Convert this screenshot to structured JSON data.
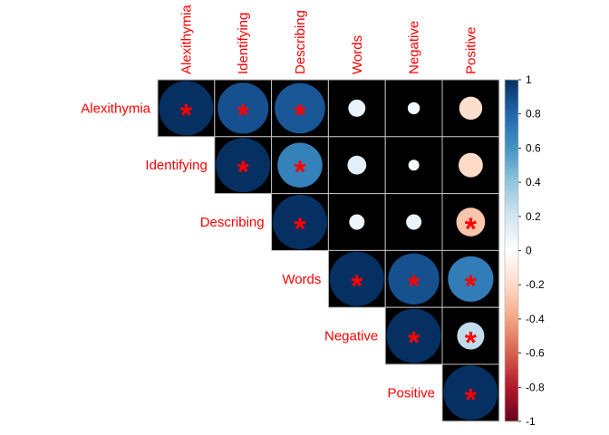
{
  "chart_data": {
    "type": "heatmap",
    "subtype": "correlation-matrix-upper-circles",
    "variables": [
      "Alexithymia",
      "Identifying",
      "Describing",
      "Words",
      "Negative",
      "Positive"
    ],
    "matrix": [
      [
        1.0,
        0.88,
        0.86,
        0.1,
        0.05,
        -0.18
      ],
      [
        null,
        1.0,
        0.68,
        0.12,
        0.04,
        -0.2
      ],
      [
        null,
        null,
        1.0,
        0.08,
        0.08,
        -0.28
      ],
      [
        null,
        null,
        null,
        1.0,
        0.88,
        0.7
      ],
      [
        null,
        null,
        null,
        null,
        1.0,
        0.25
      ],
      [
        null,
        null,
        null,
        null,
        null,
        1.0
      ]
    ],
    "significant": [
      [
        true,
        true,
        true,
        false,
        false,
        false
      ],
      [
        null,
        true,
        true,
        false,
        false,
        false
      ],
      [
        null,
        null,
        true,
        false,
        false,
        true
      ],
      [
        null,
        null,
        null,
        true,
        true,
        true
      ],
      [
        null,
        null,
        null,
        null,
        true,
        true
      ],
      [
        null,
        null,
        null,
        null,
        null,
        true
      ]
    ],
    "significance_marker": "*",
    "colorbar": {
      "range": [
        -1,
        1
      ],
      "ticks": [
        "1",
        "0.8",
        "0.6",
        "0.4",
        "0.2",
        "0",
        "-0.2",
        "-0.4",
        "-0.6",
        "-0.8",
        "-1"
      ],
      "colors": [
        "#67001f",
        "#b2182b",
        "#d6604d",
        "#f4a582",
        "#fddbc7",
        "#ffffff",
        "#d1e5f0",
        "#92c5de",
        "#4393c3",
        "#2166ac",
        "#053061"
      ]
    },
    "cell_background": "#000000",
    "grid_color": "#bebebe",
    "label_color": "#ff0000",
    "legend_position": "right"
  }
}
